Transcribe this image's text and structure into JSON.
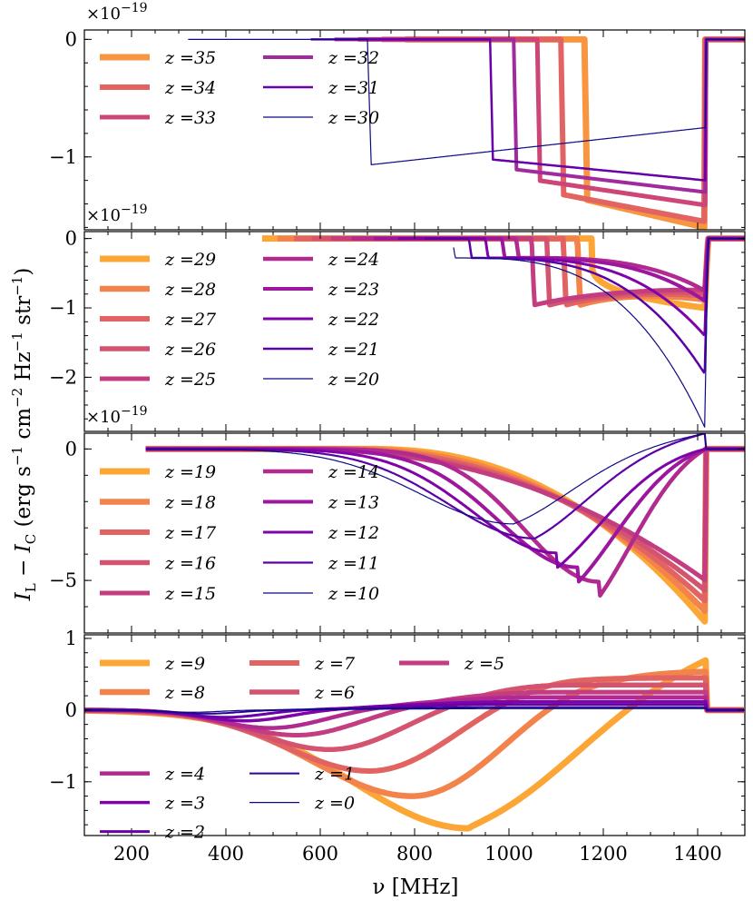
{
  "chart_data": [
    {
      "type": "line",
      "panel": 1,
      "multiplier": "×10",
      "multiplier_exp": "−19",
      "ylim": [
        -1.62,
        0.08
      ],
      "yticks": [
        0,
        -1
      ],
      "ytick_labels": [
        "0",
        "−1"
      ],
      "series": [
        {
          "name": "z =35",
          "redshift": 35,
          "color": "#f89540",
          "width": 7,
          "onset": 1160,
          "depth": 1.6
        },
        {
          "name": "z =34",
          "redshift": 34,
          "color": "#e16462",
          "width": 6,
          "onset": 1110,
          "depth": 1.55
        },
        {
          "name": "z =33",
          "redshift": 33,
          "color": "#cc4778",
          "width": 5,
          "onset": 1060,
          "depth": 1.41
        },
        {
          "name": "z =32",
          "redshift": 32,
          "color": "#a12b9e",
          "width": 4,
          "onset": 1010,
          "depth": 1.3
        },
        {
          "name": "z =31",
          "redshift": 31,
          "color": "#6a00a8",
          "width": 2.5,
          "onset": 960,
          "depth": 1.2
        },
        {
          "name": "z =30",
          "redshift": 30,
          "color": "#0d0887",
          "width": 1.2,
          "onset": 700,
          "depth": 1.07
        }
      ]
    },
    {
      "type": "line",
      "panel": 2,
      "multiplier": "×10",
      "multiplier_exp": "−19",
      "ylim": [
        -2.78,
        0.1
      ],
      "yticks": [
        0,
        -1,
        -2
      ],
      "ytick_labels": [
        "0",
        "−1",
        "−2"
      ],
      "series": [
        {
          "name": "z =29",
          "redshift": 29,
          "color": "#fca636",
          "width": 7,
          "peak": 1.0
        },
        {
          "name": "z =28",
          "redshift": 28,
          "color": "#f2844b",
          "width": 6.5,
          "peak": 0.9
        },
        {
          "name": "z =27",
          "redshift": 27,
          "color": "#e16462",
          "width": 6,
          "peak": 0.82
        },
        {
          "name": "z =26",
          "redshift": 26,
          "color": "#d45470",
          "width": 5.5,
          "peak": 0.76
        },
        {
          "name": "z =25",
          "redshift": 25,
          "color": "#c33d80",
          "width": 5,
          "peak": 0.7
        },
        {
          "name": "z =24",
          "redshift": 24,
          "color": "#b12a90",
          "width": 4.5,
          "peak": 0.75
        },
        {
          "name": "z =23",
          "redshift": 23,
          "color": "#9c179e",
          "width": 4,
          "peak": 0.9
        },
        {
          "name": "z =22",
          "redshift": 22,
          "color": "#7e03a8",
          "width": 3,
          "peak": 1.4
        },
        {
          "name": "z =21",
          "redshift": 21,
          "color": "#5c01a6",
          "width": 2.5,
          "peak": 1.95
        },
        {
          "name": "z =20",
          "redshift": 20,
          "color": "#0d0887",
          "width": 1.2,
          "peak": 2.72
        }
      ]
    },
    {
      "type": "line",
      "panel": 3,
      "multiplier": "×10",
      "multiplier_exp": "−19",
      "ylim": [
        -7.0,
        0.6
      ],
      "yticks": [
        0,
        -5
      ],
      "ytick_labels": [
        "0",
        "−5"
      ],
      "series": [
        {
          "name": "z =19",
          "redshift": 19,
          "color": "#fca636",
          "width": 7
        },
        {
          "name": "z =18",
          "redshift": 18,
          "color": "#f2844b",
          "width": 6.5
        },
        {
          "name": "z =17",
          "redshift": 17,
          "color": "#e16462",
          "width": 6
        },
        {
          "name": "z =16",
          "redshift": 16,
          "color": "#d45470",
          "width": 5.5
        },
        {
          "name": "z =15",
          "redshift": 15,
          "color": "#c33d80",
          "width": 5
        },
        {
          "name": "z =14",
          "redshift": 14,
          "color": "#b12a90",
          "width": 4.5
        },
        {
          "name": "z =13",
          "redshift": 13,
          "color": "#9c179e",
          "width": 4
        },
        {
          "name": "z =12",
          "redshift": 12,
          "color": "#7e03a8",
          "width": 3
        },
        {
          "name": "z =11",
          "redshift": 11,
          "color": "#5c01a6",
          "width": 2.2
        },
        {
          "name": "z =10",
          "redshift": 10,
          "color": "#0d0887",
          "width": 1.2
        }
      ]
    },
    {
      "type": "line",
      "panel": 4,
      "multiplier": "",
      "multiplier_exp": "",
      "ylim": [
        -1.75,
        1.05
      ],
      "yticks": [
        1,
        0,
        -1
      ],
      "ytick_labels": [
        "1",
        "0",
        "−1"
      ],
      "xlim": [
        100,
        1500
      ],
      "xticks": [
        200,
        400,
        600,
        800,
        1000,
        1200,
        1400
      ],
      "xtick_labels": [
        "200",
        "400",
        "600",
        "800",
        "1000",
        "1200",
        "1400"
      ],
      "xlabel": "ν [MHz]",
      "series": [
        {
          "name": "z =9",
          "redshift": 9,
          "color": "#fca636",
          "width": 7
        },
        {
          "name": "z =8",
          "redshift": 8,
          "color": "#f2844b",
          "width": 6.5
        },
        {
          "name": "z =7",
          "redshift": 7,
          "color": "#e16462",
          "width": 6
        },
        {
          "name": "z =6",
          "redshift": 6,
          "color": "#d45470",
          "width": 5.5
        },
        {
          "name": "z =5",
          "redshift": 5,
          "color": "#c33d80",
          "width": 5
        },
        {
          "name": "z =4",
          "redshift": 4,
          "color": "#b12a90",
          "width": 4.5
        },
        {
          "name": "z =3",
          "redshift": 3,
          "color": "#7e03a8",
          "width": 3.5
        },
        {
          "name": "z =2",
          "redshift": 2,
          "color": "#6a00a8",
          "width": 3
        },
        {
          "name": "z =1",
          "redshift": 1,
          "color": "#2a0593",
          "width": 2
        },
        {
          "name": "z =0",
          "redshift": 0,
          "color": "#0d0887",
          "width": 1.2
        }
      ]
    }
  ],
  "ylabel": "I_L − I_C (erg s⁻¹ cm⁻² Hz⁻¹ str⁻¹)",
  "ylabel_parts": {
    "I": "I",
    "L": "L",
    "minus": " − ",
    "C": "C",
    "unit_open": " (erg s",
    "exp1": "−1",
    "cm": " cm",
    "exp2": "−2",
    "hz": " Hz",
    "exp3": "−1",
    "str": " str",
    "exp4": "−1",
    "unit_close": ")"
  }
}
